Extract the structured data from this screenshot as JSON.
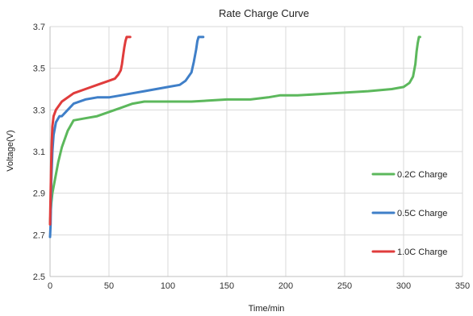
{
  "chart_data": {
    "type": "line",
    "title": "Rate Charge Curve",
    "xlabel": "Time/min",
    "ylabel": "Voltage(V)",
    "xlim": [
      0,
      350
    ],
    "ylim": [
      2.5,
      3.7
    ],
    "xticks": [
      0,
      50,
      100,
      150,
      200,
      250,
      300,
      350
    ],
    "yticks": [
      2.5,
      2.7,
      2.9,
      3.1,
      3.3,
      3.5,
      3.7
    ],
    "ytick_labels": [
      "2.5",
      "2.7",
      "2.9",
      "3.1",
      "3.3",
      "3.5",
      "3.7"
    ],
    "grid": true,
    "legend_position": "right",
    "series": [
      {
        "name": "0.2C Charge",
        "color": "#5cb85c",
        "x": [
          0,
          1,
          2,
          4,
          7,
          10,
          15,
          20,
          30,
          40,
          50,
          60,
          70,
          80,
          100,
          120,
          150,
          170,
          185,
          195,
          210,
          240,
          270,
          290,
          300,
          305,
          308,
          310,
          311,
          312,
          313,
          314
        ],
        "y": [
          2.76,
          2.85,
          2.9,
          2.96,
          3.05,
          3.12,
          3.2,
          3.25,
          3.26,
          3.27,
          3.29,
          3.31,
          3.33,
          3.34,
          3.34,
          3.34,
          3.35,
          3.35,
          3.36,
          3.37,
          3.37,
          3.38,
          3.39,
          3.4,
          3.41,
          3.43,
          3.46,
          3.52,
          3.58,
          3.62,
          3.65,
          3.65
        ]
      },
      {
        "name": "0.5C Charge",
        "color": "#3f7fc8",
        "x": [
          0,
          0.5,
          1,
          2,
          3,
          5,
          8,
          10,
          15,
          20,
          30,
          40,
          50,
          60,
          70,
          80,
          90,
          100,
          110,
          115,
          120,
          122,
          124,
          125,
          126,
          128,
          130
        ],
        "y": [
          2.69,
          2.75,
          2.95,
          3.1,
          3.18,
          3.24,
          3.27,
          3.27,
          3.3,
          3.33,
          3.35,
          3.36,
          3.36,
          3.37,
          3.38,
          3.39,
          3.4,
          3.41,
          3.42,
          3.44,
          3.48,
          3.53,
          3.59,
          3.63,
          3.65,
          3.65,
          3.65
        ]
      },
      {
        "name": "1.0C Charge",
        "color": "#e03c3c",
        "x": [
          0,
          0.5,
          1,
          1.5,
          2,
          3,
          5,
          10,
          20,
          30,
          40,
          50,
          55,
          58,
          60,
          61,
          62,
          63,
          64,
          65,
          66,
          68
        ],
        "y": [
          2.75,
          2.9,
          3.05,
          3.15,
          3.22,
          3.27,
          3.3,
          3.34,
          3.38,
          3.4,
          3.42,
          3.44,
          3.45,
          3.47,
          3.49,
          3.52,
          3.56,
          3.6,
          3.63,
          3.65,
          3.65,
          3.65
        ]
      }
    ]
  }
}
